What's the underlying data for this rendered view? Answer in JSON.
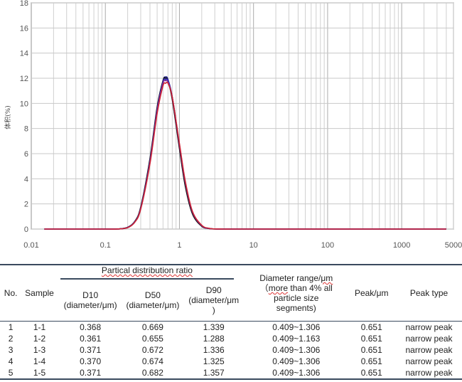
{
  "chart_data": {
    "type": "line",
    "title": "",
    "xlabel": "",
    "ylabel": "体积(%)",
    "xscale": "log",
    "xlim": [
      0.01,
      5000
    ],
    "ylim": [
      0,
      18
    ],
    "grid": true,
    "xticks": [
      "0.01",
      "0.1",
      "1",
      "10",
      "100",
      "1000",
      "5000"
    ],
    "yticks": [
      "0",
      "2",
      "4",
      "6",
      "8",
      "10",
      "12",
      "14",
      "16",
      "18"
    ],
    "x": [
      0.015,
      0.1,
      0.15,
      0.2,
      0.25,
      0.3,
      0.4,
      0.5,
      0.6,
      0.651,
      0.7,
      0.8,
      1,
      1.2,
      1.5,
      2,
      2.5,
      3,
      4,
      5,
      10,
      100,
      1000,
      4000
    ],
    "series": [
      {
        "name": "1-1",
        "color": "#1a1a8c",
        "values": [
          0,
          0,
          0.01,
          0.13,
          0.6,
          1.7,
          5.5,
          9.6,
          11.8,
          12.1,
          11.9,
          10.5,
          6.6,
          3.6,
          1.3,
          0.25,
          0.05,
          0.01,
          0,
          0,
          0,
          0,
          0,
          0
        ]
      },
      {
        "name": "1-2",
        "color": "#111111",
        "values": [
          0,
          0,
          0.01,
          0.14,
          0.62,
          1.75,
          5.6,
          9.7,
          11.8,
          12.0,
          11.8,
          10.3,
          6.4,
          3.4,
          1.2,
          0.22,
          0.04,
          0.01,
          0,
          0,
          0,
          0,
          0,
          0
        ]
      },
      {
        "name": "1-3",
        "color": "#3030c0",
        "values": [
          0,
          0,
          0.01,
          0.12,
          0.58,
          1.65,
          5.4,
          9.5,
          11.7,
          11.9,
          11.8,
          10.5,
          6.7,
          3.7,
          1.35,
          0.27,
          0.05,
          0.01,
          0,
          0,
          0,
          0,
          0,
          0
        ]
      },
      {
        "name": "1-4",
        "color": "#7a2a9a",
        "values": [
          0,
          0,
          0.01,
          0.12,
          0.57,
          1.62,
          5.3,
          9.4,
          11.6,
          11.8,
          11.7,
          10.5,
          6.7,
          3.7,
          1.35,
          0.27,
          0.05,
          0.01,
          0,
          0,
          0,
          0,
          0,
          0
        ]
      },
      {
        "name": "1-5",
        "color": "#cc2233",
        "values": [
          0,
          0,
          0.01,
          0.11,
          0.55,
          1.58,
          5.2,
          9.2,
          11.4,
          11.6,
          11.6,
          10.5,
          6.8,
          3.8,
          1.4,
          0.3,
          0.06,
          0.01,
          0,
          0,
          0,
          0,
          0,
          0
        ]
      }
    ]
  },
  "table": {
    "group_header": "Partical distribution  ratio",
    "headers": {
      "no": "No.",
      "sample": "Sample",
      "d10_a": "D10",
      "d10_b": "(diameter/μm)",
      "d50_a": "D50",
      "d50_b": "(diameter/μm)",
      "d90_a": "D90",
      "d90_b": "(diameter/μm",
      "d90_c": ")",
      "range_a": "Diameter range/",
      "range_unit": "μm",
      "range_b": "（",
      "range_more": "more",
      "range_c": " than 4% all",
      "range_d": "particle size",
      "range_e": "segments)",
      "peak": "Peak/μm",
      "type": "Peak type"
    },
    "rows": [
      {
        "no": "1",
        "sample": "1-1",
        "d10": "0.368",
        "d50": "0.669",
        "d90": "1.339",
        "range": "0.409~1.306",
        "peak": "0.651",
        "type": "narrow peak"
      },
      {
        "no": "2",
        "sample": "1-2",
        "d10": "0.361",
        "d50": "0.655",
        "d90": "1.288",
        "range": "0.409~1.163",
        "peak": "0.651",
        "type": "narrow peak"
      },
      {
        "no": "3",
        "sample": "1-3",
        "d10": "0.371",
        "d50": "0.672",
        "d90": "1.336",
        "range": "0.409~1.306",
        "peak": "0.651",
        "type": "narrow peak"
      },
      {
        "no": "4",
        "sample": "1-4",
        "d10": "0.370",
        "d50": "0.674",
        "d90": "1.325",
        "range": "0.409~1.306",
        "peak": "0.651",
        "type": "narrow peak"
      },
      {
        "no": "5",
        "sample": "1-5",
        "d10": "0.371",
        "d50": "0.682",
        "d90": "1.357",
        "range": "0.409~1.306",
        "peak": "0.651",
        "type": "narrow peak"
      }
    ]
  }
}
